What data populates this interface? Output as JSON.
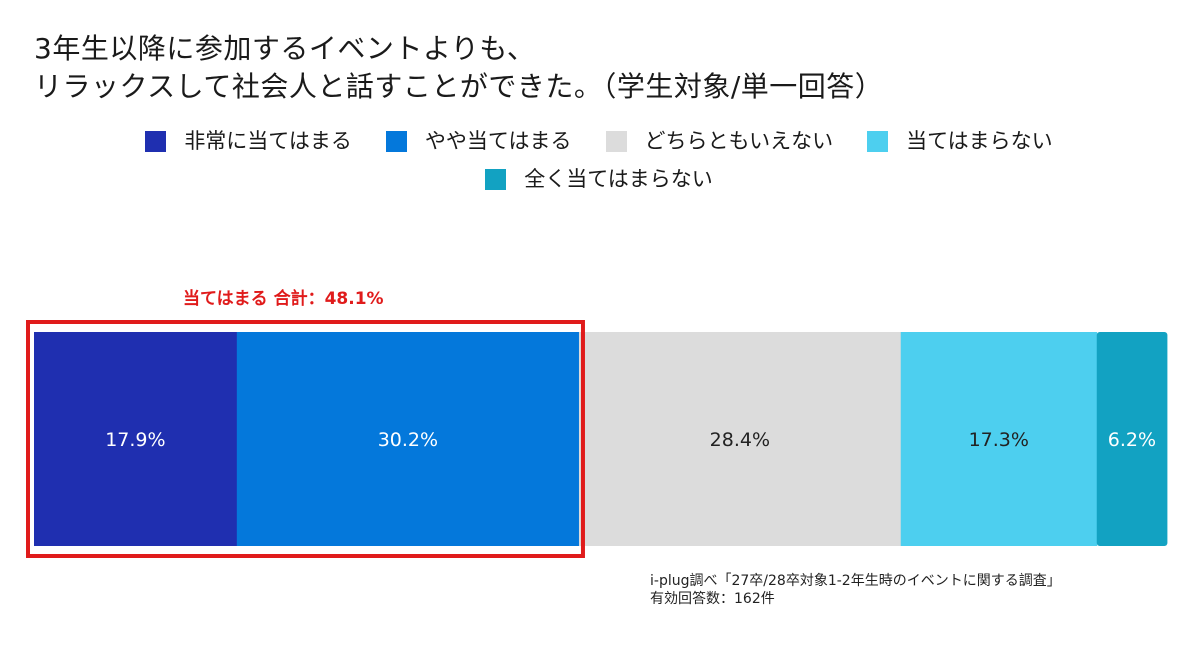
{
  "title": {
    "line1": "3年生以降に参加するイベントよりも、",
    "line2": "リラックスして社会人と話すことができた。（学生対象/単一回答）"
  },
  "chart_data": {
    "type": "bar",
    "orientation": "horizontal-stacked-100",
    "categories": [
      "非常に当てはまる",
      "やや当てはまる",
      "どちらともいえない",
      "当てはまらない",
      "全く当てはまらない"
    ],
    "values": [
      17.9,
      30.2,
      28.4,
      17.3,
      6.2
    ],
    "labels": [
      "17.9%",
      "30.2%",
      "28.4%",
      "17.3%",
      "6.2%"
    ],
    "colors": [
      "#1f2fb0",
      "#0478db",
      "#dcdcdc",
      "#4dcfef",
      "#12a2c2"
    ],
    "label_colors": [
      "#ffffff",
      "#ffffff",
      "#222222",
      "#222222",
      "#ffffff"
    ],
    "legend_placement": "top",
    "highlight": {
      "label": "当てはまる 合計：48.1%",
      "total": 48.1,
      "color": "#e01b1b",
      "covers_first_n": 2
    }
  },
  "note": {
    "line1": "i-plug調べ「27卒/28卒対象1-2年生時のイベントに関する調査」",
    "line2": "有効回答数：162件"
  }
}
